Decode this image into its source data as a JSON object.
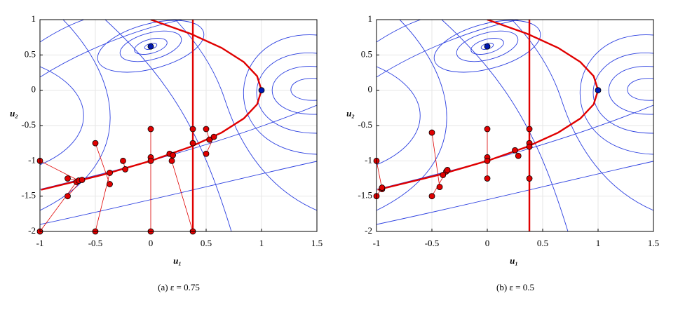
{
  "chart_data": [
    {
      "type": "scatter",
      "caption": "(a)  ε = 0.75",
      "xlabel": "u₁",
      "ylabel": "u₂",
      "xlim": [
        -1,
        1.5
      ],
      "ylim": [
        -2,
        1
      ],
      "xticks": [
        -1,
        -0.5,
        0,
        0.5,
        1,
        1.5
      ],
      "yticks": [
        -2,
        -1.5,
        -1,
        -0.5,
        0,
        0.5,
        1
      ],
      "grid": true,
      "series": [
        {
          "mode": "line",
          "color": "#e00000",
          "x": [
            0,
            0.36,
            0.64,
            0.84,
            0.96,
            1,
            0.96,
            0.84,
            0.64,
            0.36,
            0,
            -0.44,
            -0.99
          ],
          "values": [
            1,
            0.8,
            0.6,
            0.4,
            0.2,
            0,
            -0.2,
            -0.4,
            -0.6,
            -0.8,
            -1,
            -1.2,
            -1.41
          ]
        },
        {
          "mode": "line",
          "color": "#e00000",
          "x": [
            0.38,
            0.38
          ],
          "values": [
            1,
            -2
          ]
        },
        {
          "mode": "lines+markers",
          "color": "#e00000",
          "x": [
            -1,
            -0.65,
            null,
            -1,
            -0.67,
            null,
            -0.75,
            -0.65,
            null,
            -0.75,
            -0.62,
            null,
            -0.5,
            -0.37,
            null,
            -0.5,
            -0.37,
            null,
            -0.25,
            -0.23,
            null,
            0,
            0,
            null,
            0,
            0,
            null,
            0.17,
            0.38,
            null,
            0.38,
            0.38,
            null,
            0.5,
            0.53,
            null,
            0.5,
            0.57,
            null,
            0.19,
            0.2
          ],
          "values": [
            -1,
            -1.28,
            null,
            -2,
            -1.3,
            null,
            -1.25,
            -1.28,
            null,
            -1.5,
            -1.27,
            null,
            -0.75,
            -1.33,
            null,
            -2,
            -1.17,
            null,
            -1,
            -1.12,
            null,
            -0.55,
            -0.95,
            null,
            -2,
            -1,
            null,
            -0.9,
            -2,
            null,
            -0.55,
            -0.75,
            null,
            -0.55,
            -0.7,
            null,
            -0.9,
            -0.66,
            null,
            -1,
            -0.92
          ]
        },
        {
          "mode": "markers",
          "color": "#0018b0",
          "x": [
            0,
            1
          ],
          "values": [
            0.62,
            0
          ]
        }
      ]
    },
    {
      "type": "scatter",
      "caption": "(b)  ε = 0.5",
      "xlabel": "u₁",
      "ylabel": "u₂",
      "xlim": [
        -1,
        1.5
      ],
      "ylim": [
        -2,
        1
      ],
      "xticks": [
        -1,
        -0.5,
        0,
        0.5,
        1,
        1.5
      ],
      "yticks": [
        -2,
        -1.5,
        -1,
        -0.5,
        0,
        0.5,
        1
      ],
      "grid": true,
      "series": [
        {
          "mode": "line",
          "color": "#e00000",
          "x": [
            0,
            0.36,
            0.64,
            0.84,
            0.96,
            1,
            0.96,
            0.84,
            0.64,
            0.36,
            0,
            -0.44,
            -0.99
          ],
          "values": [
            1,
            0.8,
            0.6,
            0.4,
            0.2,
            0,
            -0.2,
            -0.4,
            -0.6,
            -0.8,
            -1,
            -1.2,
            -1.41
          ]
        },
        {
          "mode": "line",
          "color": "#e00000",
          "x": [
            0.38,
            0.38
          ],
          "values": [
            1,
            -2
          ]
        },
        {
          "mode": "lines+markers",
          "color": "#e00000",
          "x": [
            -1,
            -0.95,
            null,
            -1,
            -0.95,
            null,
            -0.5,
            -0.43,
            null,
            -0.5,
            -0.37,
            null,
            -0.4,
            -0.36,
            null,
            0,
            0,
            null,
            0,
            0,
            null,
            0.25,
            0.28,
            null,
            0.38,
            0.38,
            null,
            0.38,
            0.38
          ],
          "values": [
            -1,
            -1.4,
            null,
            -1.5,
            -1.38,
            null,
            -0.6,
            -1.37,
            null,
            -1.5,
            -1.15,
            null,
            -1.2,
            -1.13,
            null,
            -0.55,
            -0.95,
            null,
            -1.25,
            -1,
            null,
            -0.85,
            -0.93,
            null,
            -0.55,
            -0.75,
            null,
            -1.25,
            -0.8
          ]
        },
        {
          "mode": "markers",
          "color": "#0018b0",
          "x": [
            0,
            1
          ],
          "values": [
            0.62,
            0
          ]
        }
      ]
    }
  ]
}
